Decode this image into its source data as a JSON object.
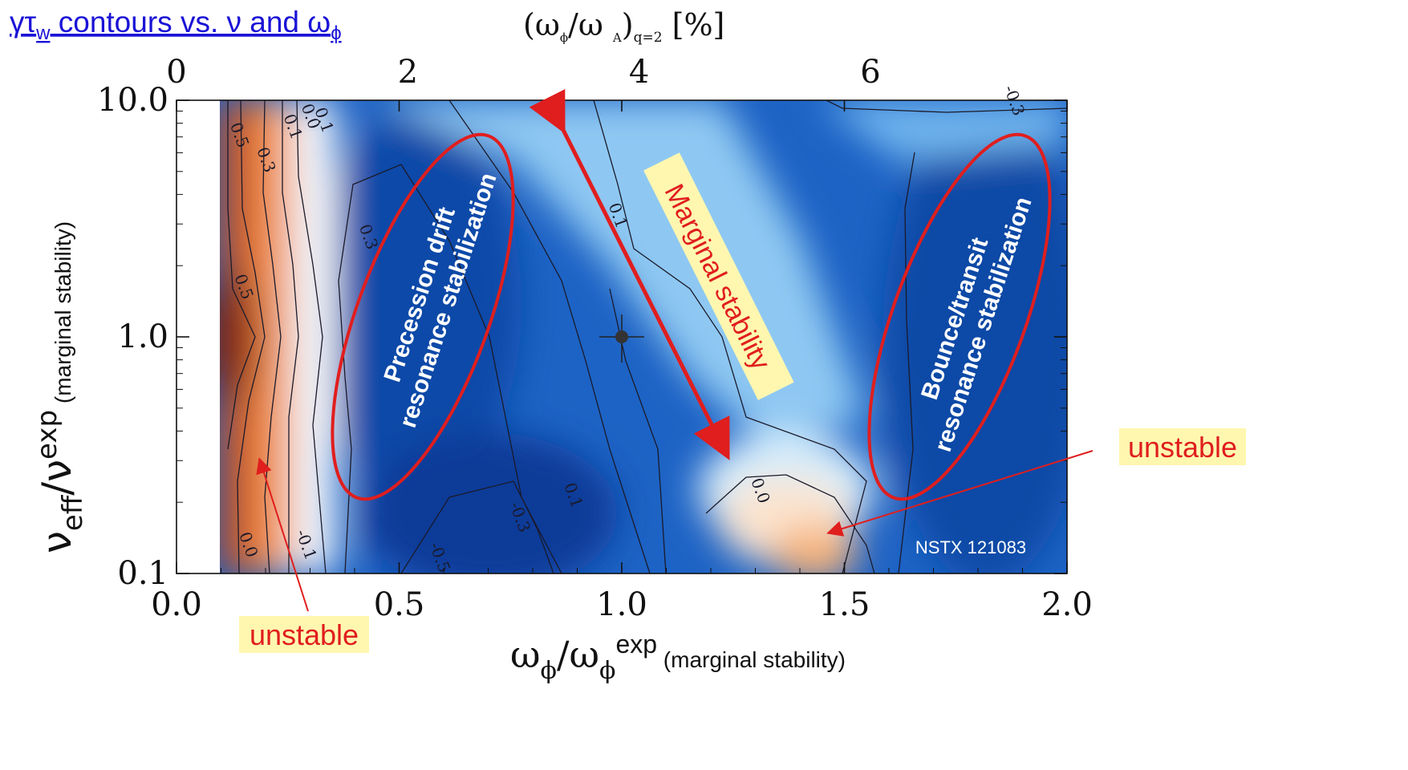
{
  "header": {
    "link_parts": [
      "γτ",
      "w",
      " contours vs. ν and ω",
      "ϕ"
    ],
    "top_axis_title_parts": [
      "(ω",
      "ϕ",
      "/ω ",
      "A",
      ")",
      "q=2",
      " [%]"
    ]
  },
  "chart_data": {
    "type": "heatmap",
    "xlabel_parts": [
      "ω",
      "ϕ",
      "/ω",
      "ϕ",
      "exp",
      " (marginal stability)"
    ],
    "ylabel_parts": [
      "ν",
      "eff",
      "/ν",
      "exp",
      " (marginal stability)"
    ],
    "x_ticks": [
      "0.0",
      "0.5",
      "1.0",
      "1.5",
      "2.0"
    ],
    "x_tick_values": [
      0.0,
      0.5,
      1.0,
      1.5,
      2.0
    ],
    "xlim": [
      0.0,
      2.0
    ],
    "top_ticks": [
      "0",
      "2",
      "4",
      "6"
    ],
    "top_tick_values": [
      0,
      2,
      4,
      6
    ],
    "top_axis_range": [
      0,
      7.7
    ],
    "y_ticks": [
      "0.1",
      "1.0",
      "10.0"
    ],
    "y_tick_values": [
      0.1,
      1.0,
      10.0
    ],
    "ylim": [
      0.1,
      10.0
    ],
    "y_scale": "log",
    "data_x_start": 0.1,
    "colors": {
      "unstable": "#c43c06",
      "neutral": "#ffffff",
      "stable": "#0a4fb0",
      "annotation_red": "#e01e1e",
      "highlight": "#fff7b0"
    },
    "contour_labels": [
      {
        "text": "0.5",
        "x": 0.13,
        "y": 7.0
      },
      {
        "text": "0.3",
        "x": 0.19,
        "y": 5.5
      },
      {
        "text": "0.1",
        "x": 0.25,
        "y": 7.6
      },
      {
        "text": "0.0",
        "x": 0.29,
        "y": 8.4
      },
      {
        "text": "0.1",
        "x": 0.32,
        "y": 8.1
      },
      {
        "text": "0.5",
        "x": 0.14,
        "y": 1.6
      },
      {
        "text": "0.3",
        "x": 0.42,
        "y": 2.6
      },
      {
        "text": "0.1",
        "x": 0.98,
        "y": 3.2
      },
      {
        "text": "-0.3",
        "x": 1.87,
        "y": 9.8
      },
      {
        "text": "0.0",
        "x": 1.3,
        "y": 0.22
      },
      {
        "text": "0.1",
        "x": 0.88,
        "y": 0.21
      },
      {
        "text": "-0.3",
        "x": 0.76,
        "y": 0.17
      },
      {
        "text": "-0.5",
        "x": 0.58,
        "y": 0.115
      },
      {
        "text": "0.0",
        "x": 0.15,
        "y": 0.13
      },
      {
        "text": "-0.1",
        "x": 0.28,
        "y": 0.13
      }
    ],
    "reference_point": {
      "x": 1.0,
      "y": 1.0
    },
    "annotations": {
      "precession": [
        "Precession drift",
        "resonance stabilization"
      ],
      "bounce": [
        "Bounce/transit",
        "resonance stabilization"
      ],
      "marginal": "Marginal stability",
      "unstable_left": "unstable",
      "unstable_right": "unstable",
      "shot": "NSTX 121083"
    }
  }
}
